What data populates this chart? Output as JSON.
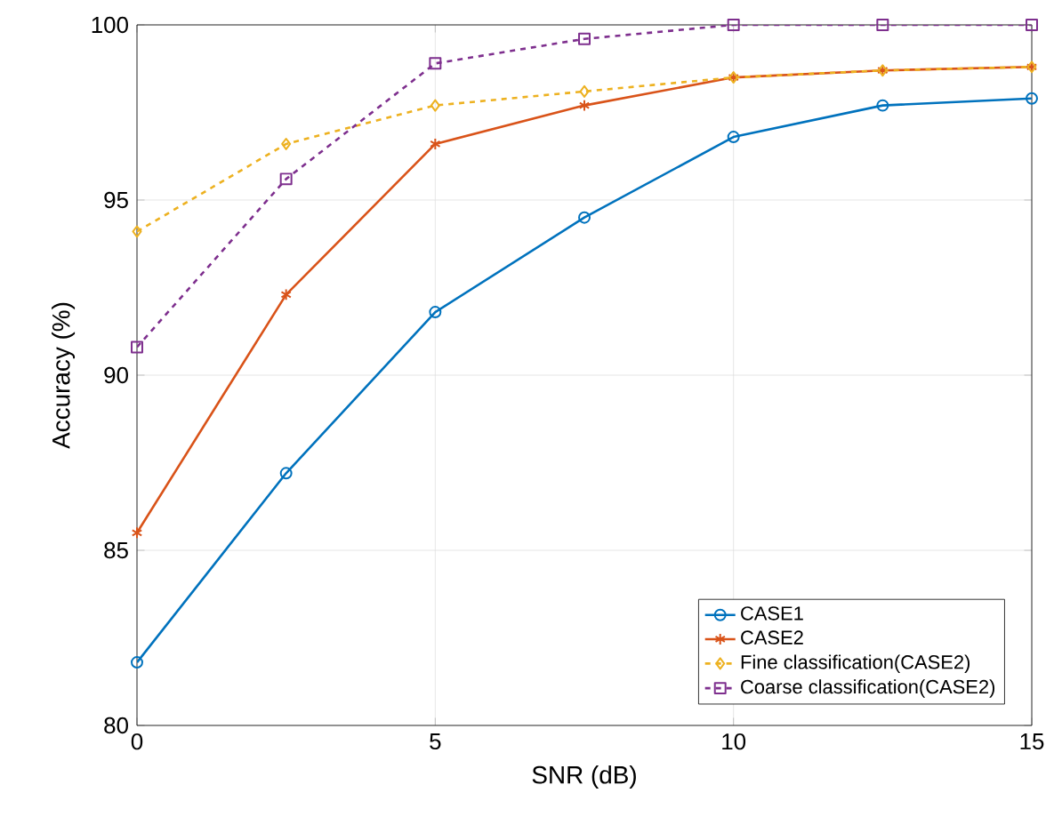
{
  "chart_data": {
    "type": "line",
    "xlabel": "SNR (dB)",
    "ylabel": "Accuracy (%)",
    "x": [
      0,
      2.5,
      5,
      7.5,
      10,
      12.5,
      15
    ],
    "series": [
      {
        "name": "CASE1",
        "color": "#0072bd",
        "marker": "circle",
        "line_style": "solid",
        "values": [
          81.8,
          87.2,
          91.8,
          94.5,
          96.8,
          97.7,
          97.9
        ]
      },
      {
        "name": "CASE2",
        "color": "#d95319",
        "marker": "cross",
        "line_style": "solid",
        "values": [
          85.5,
          92.3,
          96.6,
          97.7,
          98.5,
          98.7,
          98.8
        ]
      },
      {
        "name": "Fine classification(CASE2)",
        "color": "#edb120",
        "marker": "diamond",
        "line_style": "dashed",
        "values": [
          94.1,
          96.6,
          97.7,
          98.1,
          98.5,
          98.7,
          98.8
        ]
      },
      {
        "name": "Coarse classification(CASE2)",
        "color": "#7e2f8e",
        "marker": "square",
        "line_style": "dashed",
        "values": [
          90.8,
          95.6,
          98.9,
          99.6,
          100,
          100,
          100
        ]
      }
    ],
    "xlim": [
      0,
      15
    ],
    "ylim": [
      80,
      100
    ],
    "xticks": [
      0,
      5,
      10,
      15
    ],
    "yticks": [
      80,
      85,
      90,
      95,
      100
    ],
    "grid": true,
    "legend": "bottom right"
  }
}
